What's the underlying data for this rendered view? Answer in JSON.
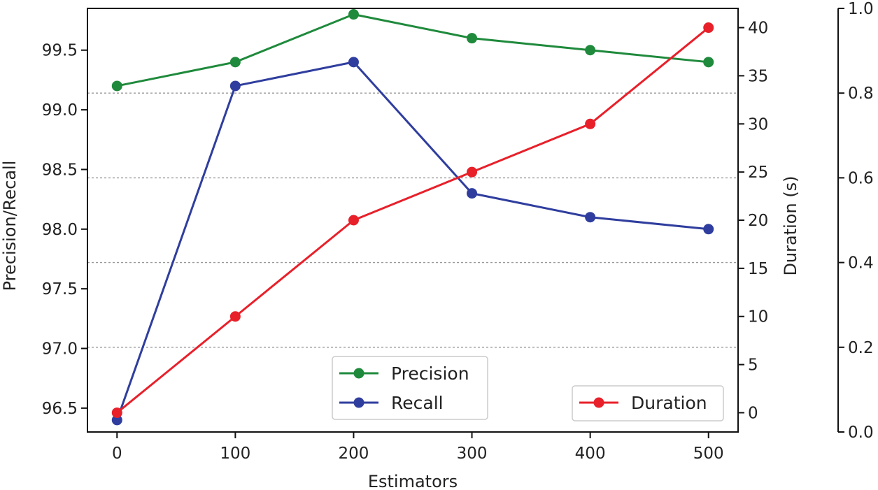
{
  "chart_data": {
    "type": "line",
    "xlabel": "Estimators",
    "ylabel_left": "Precision/Recall",
    "ylabel_right": "Duration (s)",
    "x": [
      0,
      100,
      200,
      300,
      400,
      500
    ],
    "x_ticks": [
      0,
      100,
      200,
      300,
      400,
      500
    ],
    "x_tick_labels": [
      "0",
      "100",
      "200",
      "300",
      "400",
      "500"
    ],
    "xlim": [
      -25,
      525
    ],
    "left_axis": {
      "ylim": [
        96.3,
        99.85
      ],
      "ticks": [
        96.5,
        97.0,
        97.5,
        98.0,
        98.5,
        99.0,
        99.5
      ],
      "tick_labels": [
        "96.5",
        "97.0",
        "97.5",
        "98.0",
        "98.5",
        "99.0",
        "99.5"
      ]
    },
    "right_axis": {
      "ylim": [
        -2,
        42
      ],
      "ticks": [
        0,
        5,
        10,
        15,
        20,
        25,
        30,
        35,
        40
      ],
      "tick_labels": [
        "0",
        "5",
        "10",
        "15",
        "20",
        "25",
        "30",
        "35",
        "40"
      ]
    },
    "third_axis": {
      "ylim": [
        0.0,
        1.0
      ],
      "ticks": [
        0.0,
        0.2,
        0.4,
        0.6,
        0.8,
        1.0
      ],
      "tick_labels": [
        "0.0",
        "0.2",
        "0.4",
        "0.6",
        "0.8",
        "1.0"
      ]
    },
    "grid": "dotted horizontal lines",
    "series": [
      {
        "name": "Precision",
        "axis": "left",
        "color": "#1f8a3c",
        "values": [
          99.2,
          99.4,
          99.8,
          99.6,
          99.5,
          99.4
        ]
      },
      {
        "name": "Recall",
        "axis": "left",
        "color": "#2f3e9e",
        "values": [
          96.4,
          99.2,
          99.4,
          98.3,
          98.1,
          98.0
        ]
      },
      {
        "name": "Duration",
        "axis": "right",
        "color": "#e8202a",
        "values": [
          0,
          10,
          20,
          25,
          30,
          40
        ]
      }
    ],
    "legends": [
      {
        "placement": "bottom-center",
        "entries": [
          "Precision",
          "Recall"
        ]
      },
      {
        "placement": "bottom-right",
        "entries": [
          "Duration"
        ]
      }
    ]
  }
}
